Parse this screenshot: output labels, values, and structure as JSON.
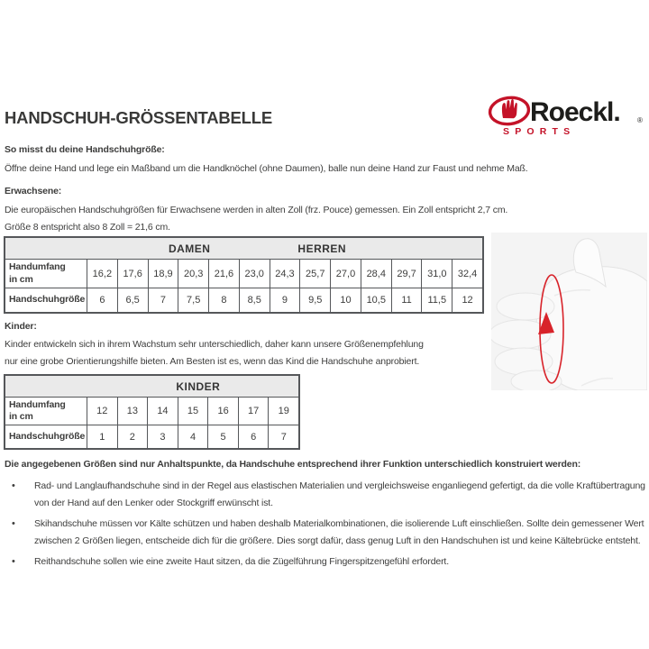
{
  "page": {
    "title": "HANDSCHUH-GRÖSSENTABELLE"
  },
  "logo": {
    "brand": "Roeckl.",
    "registered": "®",
    "subtitle": "SPORTS",
    "red": "#c41228",
    "black": "#1d1d1b",
    "emblem_icon": "glove-in-oval"
  },
  "intro": {
    "heading": "So misst du deine Handschuhgröße:",
    "text": "Öffne deine Hand und lege ein Maßband um die Handknöchel (ohne Daumen), balle nun deine Hand zur Faust und nehme Maß."
  },
  "adults": {
    "heading": "Erwachsene:",
    "line1": "Die europäischen Handschuhgrößen für Erwachsene werden in alten Zoll (frz. Pouce) gemessen. Ein Zoll entspricht 2,7 cm.",
    "line2": "Größe 8 entspricht also 8 Zoll = 21,6 cm."
  },
  "adult_table": {
    "damen_label": "DAMEN",
    "herren_label": "HERREN",
    "row_label_line1": "Handumfang",
    "row_label_line2": "in cm",
    "size_label": "Handschuhgröße",
    "circumference": [
      "16,2",
      "17,6",
      "18,9",
      "20,3",
      "21,6",
      "23,0",
      "24,3",
      "25,7",
      "27,0",
      "28,4",
      "29,7",
      "31,0",
      "32,4"
    ],
    "sizes": [
      "6",
      "6,5",
      "7",
      "7,5",
      "8",
      "8,5",
      "9",
      "9,5",
      "10",
      "10,5",
      "11",
      "11,5",
      "12"
    ]
  },
  "kids": {
    "heading": "Kinder:",
    "line1": "Kinder entwickeln sich in ihrem Wachstum sehr unterschiedlich, daher kann unsere Größenempfehlung",
    "line2": "nur eine grobe Orientierungshilfe bieten. Am Besten ist es, wenn das Kind die Handschuhe anprobiert."
  },
  "kids_table": {
    "group_label": "KINDER",
    "row_label_line1": "Handumfang",
    "row_label_line2": "in cm",
    "size_label": "Handschuhgröße",
    "circumference": [
      "12",
      "13",
      "14",
      "15",
      "16",
      "17",
      "19"
    ],
    "sizes": [
      "1",
      "2",
      "3",
      "4",
      "5",
      "6",
      "7"
    ]
  },
  "notes": {
    "heading": "Die angegebenen Größen sind nur Anhaltspunkte, da Handschuhe entsprechend ihrer Funktion unterschiedlich konstruiert werden:",
    "bullets": [
      "Rad- und Langlaufhandschuhe sind in der Regel aus elastischen Materialien und vergleichsweise enganliegend gefertigt, da die volle Kraftübertragung von der Hand auf den Lenker oder Stockgriff erwünscht ist.",
      "Skihandschuhe müssen vor Kälte schützen und haben deshalb Materialkombinationen, die isolierende Luft einschließen. Sollte dein gemessener Wert zwischen 2 Größen liegen, entscheide dich für die größere. Dies sorgt dafür, dass genug Luft in den Handschuhen ist und keine Kältebrücke entsteht.",
      "Reithandschuhe sollen wie eine zweite Haut sitzen, da die Zügelführung Fingerspitzengefühl erfordert."
    ]
  },
  "hand_figure": {
    "icon": "hand-measurement-illustration",
    "arrow_color": "#d8232a",
    "background": "#f4f4f4"
  },
  "colors": {
    "text": "#3d3d3c",
    "table_border": "#55575a",
    "table_header_bg": "#eaeaea",
    "brand_red": "#c41228"
  }
}
